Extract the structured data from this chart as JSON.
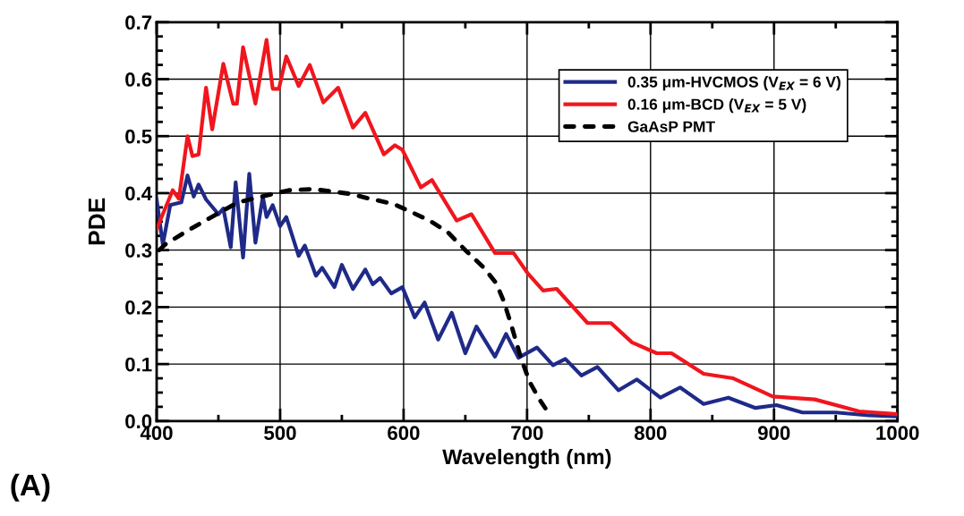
{
  "chart_data": {
    "type": "line",
    "xlabel": "Wavelength (nm)",
    "ylabel": "PDE",
    "xlim": [
      400,
      1000
    ],
    "xticks": [
      400,
      500,
      600,
      700,
      800,
      900,
      1000
    ],
    "ylim": [
      0,
      0.7
    ],
    "yticks": [
      {
        "value": 0,
        "label": "0.0"
      },
      0.1,
      0.2,
      0.3,
      0.4,
      0.5,
      0.6,
      0.7
    ],
    "grid": true,
    "legend": "top right",
    "annotations": [
      "(A)"
    ],
    "series": [
      {
        "name": "0.35 μm-HVCMOS (V$_{EX}$ = 6 V)",
        "color": "#1f2a88",
        "line_style": "solid",
        "x": [
          400,
          405,
          411,
          420,
          425,
          430,
          434,
          440,
          450,
          454,
          460,
          464,
          470,
          475,
          480,
          486,
          489,
          494,
          500,
          505,
          515,
          520,
          529,
          534,
          544,
          550,
          559,
          569,
          575,
          581,
          590,
          599,
          609,
          617,
          628,
          639,
          650,
          659,
          674,
          683,
          693,
          708,
          721,
          731,
          744,
          757,
          774,
          789,
          808,
          824,
          843,
          863,
          885,
          902,
          923,
          950,
          977,
          1000
        ],
        "values": [
          0.389,
          0.31,
          0.379,
          0.384,
          0.431,
          0.394,
          0.415,
          0.389,
          0.363,
          0.373,
          0.305,
          0.419,
          0.287,
          0.434,
          0.313,
          0.394,
          0.358,
          0.379,
          0.342,
          0.358,
          0.29,
          0.308,
          0.255,
          0.269,
          0.235,
          0.274,
          0.232,
          0.266,
          0.24,
          0.251,
          0.224,
          0.235,
          0.182,
          0.208,
          0.143,
          0.19,
          0.119,
          0.166,
          0.113,
          0.153,
          0.111,
          0.129,
          0.098,
          0.109,
          0.08,
          0.095,
          0.054,
          0.073,
          0.041,
          0.059,
          0.03,
          0.041,
          0.023,
          0.028,
          0.015,
          0.015,
          0.01,
          0.008
        ]
      },
      {
        "name": "0.16 μm-BCD (V$_{EX}$ = 5 V)",
        "color": "#f0161e",
        "line_style": "solid",
        "x": [
          400,
          413,
          418,
          425,
          429,
          434,
          440,
          445,
          454,
          462,
          465,
          470,
          480,
          489,
          494,
          499,
          505,
          515,
          524,
          535,
          547,
          559,
          569,
          584,
          593,
          599,
          614,
          623,
          643,
          655,
          674,
          689,
          701,
          713,
          724,
          749,
          768,
          785,
          805,
          817,
          843,
          867,
          899,
          933,
          969,
          1000
        ],
        "values": [
          0.337,
          0.405,
          0.39,
          0.5,
          0.465,
          0.468,
          0.585,
          0.512,
          0.627,
          0.557,
          0.557,
          0.656,
          0.557,
          0.669,
          0.583,
          0.583,
          0.64,
          0.588,
          0.625,
          0.559,
          0.585,
          0.515,
          0.541,
          0.468,
          0.484,
          0.476,
          0.41,
          0.423,
          0.352,
          0.363,
          0.295,
          0.295,
          0.258,
          0.229,
          0.232,
          0.172,
          0.172,
          0.138,
          0.119,
          0.119,
          0.083,
          0.075,
          0.043,
          0.038,
          0.017,
          0.012
        ]
      },
      {
        "name": "GaAsP PMT",
        "color": "#000000",
        "line_style": "dashed",
        "x": [
          402,
          407,
          425,
          442,
          466,
          491,
          507,
          527,
          556,
          575,
          592,
          621,
          636,
          650,
          665,
          675,
          681,
          687,
          695,
          702,
          710,
          719
        ],
        "values": [
          0.3,
          0.31,
          0.334,
          0.355,
          0.384,
          0.397,
          0.405,
          0.407,
          0.399,
          0.389,
          0.381,
          0.352,
          0.331,
          0.3,
          0.269,
          0.242,
          0.211,
          0.17,
          0.111,
          0.069,
          0.038,
          0.009
        ]
      }
    ]
  }
}
